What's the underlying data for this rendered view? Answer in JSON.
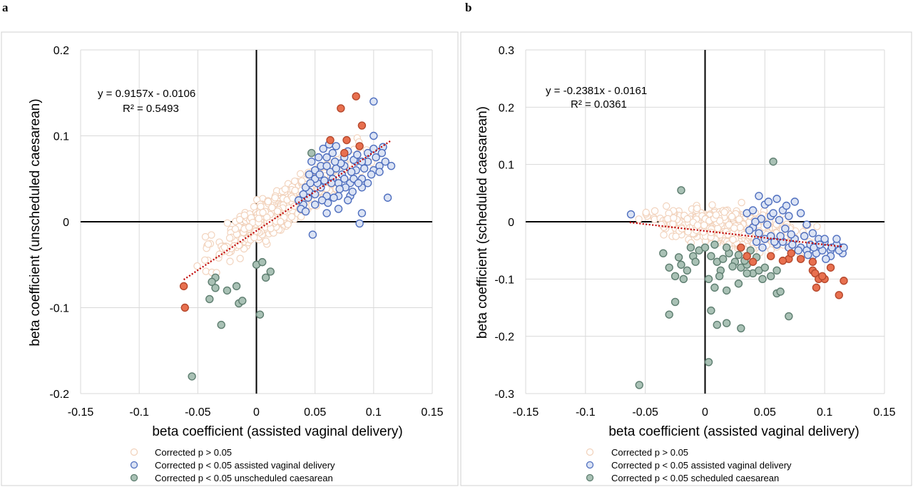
{
  "colors": {
    "ns_fill": "#ffffff",
    "ns_stroke": "#f2d3bd",
    "avd_fill": "#dbe3f4",
    "avd_stroke": "#4f6fbf",
    "cs_fill": "#a9c1b5",
    "cs_stroke": "#5e7e70",
    "both_fill": "#e8704f",
    "both_stroke": "#b5482d",
    "trend": "#c00000",
    "grid": "#d9d9d9",
    "axis": "#000000",
    "frame": "#d0d0d0"
  },
  "chart_data": [
    {
      "panel": "a",
      "type": "scatter",
      "xlabel": "beta coefficient (assisted vaginal delivery)",
      "ylabel": "beta coefficient (unscheduled caesarean)",
      "xlim": [
        -0.15,
        0.15
      ],
      "ylim": [
        -0.2,
        0.2
      ],
      "xticks": [
        "-0.15",
        "-0.1",
        "-0.05",
        "0",
        "0.05",
        "0.1",
        "0.15"
      ],
      "yticks": [
        "0.2",
        "0.1",
        "0",
        "-0.1",
        "-0.2"
      ],
      "grid": true,
      "equation": "y = 0.9157x - 0.0106",
      "r2": "R² = 0.5493",
      "trendline": {
        "slope": 0.9157,
        "intercept": -0.0106,
        "x_range": [
          -0.062,
          0.115
        ]
      },
      "legend": [
        "Corrected p > 0.05",
        "Corrected p < 0.05 assisted vaginal delivery",
        "Corrected p < 0.05 unscheduled caesarean"
      ],
      "background_cloud": {
        "n": 520,
        "slope": 0.9,
        "intercept": -0.005,
        "x_range": [
          -0.065,
          0.11
        ],
        "spread": 0.022
      },
      "series": [
        {
          "category": "avd",
          "points": [
            [
              0.045,
              0.035
            ],
            [
              0.05,
              0.06
            ],
            [
              0.055,
              0.04
            ],
            [
              0.06,
              0.075
            ],
            [
              0.065,
              0.05
            ],
            [
              0.07,
              0.03
            ],
            [
              0.075,
              0.065
            ],
            [
              0.08,
              0.045
            ],
            [
              0.085,
              0.06
            ],
            [
              0.09,
              0.05
            ],
            [
              0.095,
              0.07
            ],
            [
              0.1,
              0.06
            ],
            [
              0.105,
              0.065
            ],
            [
              0.11,
              0.07
            ],
            [
              0.115,
              0.065
            ],
            [
              0.04,
              0.02
            ],
            [
              0.05,
              0.02
            ],
            [
              0.06,
              0.03
            ],
            [
              0.07,
              0.045
            ],
            [
              0.08,
              0.03
            ],
            [
              0.09,
              0.04
            ],
            [
              0.045,
              0.055
            ],
            [
              0.055,
              0.065
            ],
            [
              0.065,
              0.08
            ],
            [
              0.075,
              0.075
            ],
            [
              0.085,
              0.07
            ],
            [
              0.095,
              0.08
            ],
            [
              0.1,
              0.1
            ],
            [
              0.1,
              0.14
            ],
            [
              0.1,
              0.085
            ],
            [
              0.108,
              0.087
            ],
            [
              0.112,
              0.028
            ],
            [
              0.09,
              0.01
            ],
            [
              0.088,
              -0.002
            ],
            [
              0.048,
              -0.015
            ],
            [
              0.06,
              0.01
            ],
            [
              0.07,
              0.015
            ],
            [
              0.078,
              0.025
            ],
            [
              0.083,
              0.05
            ],
            [
              0.058,
              0.048
            ],
            [
              0.063,
              0.058
            ],
            [
              0.068,
              0.062
            ],
            [
              0.073,
              0.055
            ],
            [
              0.052,
              0.045
            ],
            [
              0.042,
              0.04
            ],
            [
              0.098,
              0.055
            ],
            [
              0.092,
              0.062
            ],
            [
              0.087,
              0.045
            ],
            [
              0.082,
              0.035
            ],
            [
              0.076,
              0.04
            ],
            [
              0.071,
              0.038
            ],
            [
              0.066,
              0.028
            ],
            [
              0.061,
              0.022
            ],
            [
              0.056,
              0.025
            ],
            [
              0.05,
              0.032
            ],
            [
              0.044,
              0.028
            ],
            [
              0.038,
              0.015
            ],
            [
              0.105,
              0.058
            ],
            [
              0.095,
              0.045
            ],
            [
              0.083,
              0.072
            ],
            [
              0.078,
              0.082
            ],
            [
              0.072,
              0.068
            ],
            [
              0.067,
              0.07
            ],
            [
              0.06,
              0.065
            ],
            [
              0.053,
              0.075
            ],
            [
              0.047,
              0.07
            ],
            [
              0.057,
              0.085
            ],
            [
              0.062,
              0.09
            ],
            [
              0.068,
              0.088
            ],
            [
              0.05,
              0.05
            ],
            [
              0.09,
              0.07
            ],
            [
              0.086,
              0.078
            ],
            [
              0.081,
              0.058
            ],
            [
              0.075,
              0.05
            ],
            [
              0.064,
              0.045
            ],
            [
              0.054,
              0.055
            ],
            [
              0.046,
              0.045
            ],
            [
              0.04,
              0.032
            ],
            [
              0.036,
              0.025
            ],
            [
              0.042,
              0.012
            ],
            [
              0.102,
              0.075
            ],
            [
              0.107,
              0.08
            ]
          ]
        },
        {
          "category": "cs",
          "points": [
            [
              -0.055,
              -0.18
            ],
            [
              -0.03,
              -0.12
            ],
            [
              -0.035,
              -0.065
            ],
            [
              -0.038,
              -0.07
            ],
            [
              -0.035,
              -0.077
            ],
            [
              -0.04,
              -0.09
            ],
            [
              -0.025,
              -0.08
            ],
            [
              -0.017,
              -0.075
            ],
            [
              -0.015,
              -0.095
            ],
            [
              -0.012,
              -0.092
            ],
            [
              0,
              -0.05
            ],
            [
              0.005,
              -0.047
            ],
            [
              0.008,
              -0.065
            ],
            [
              0.012,
              -0.058
            ],
            [
              0.003,
              -0.108
            ],
            [
              0.047,
              0.08
            ]
          ]
        },
        {
          "category": "both",
          "points": [
            [
              -0.062,
              -0.075
            ],
            [
              -0.061,
              -0.1
            ],
            [
              0.063,
              0.095
            ],
            [
              0.072,
              0.132
            ],
            [
              0.077,
              0.095
            ],
            [
              0.085,
              0.146
            ],
            [
              0.09,
              0.112
            ],
            [
              0.088,
              0.088
            ],
            [
              0.075,
              0.08
            ]
          ]
        }
      ]
    },
    {
      "panel": "b",
      "type": "scatter",
      "xlabel": "beta coefficient (assisted vaginal delivery)",
      "ylabel": "beta coefficient (scheduled caesarean)",
      "xlim": [
        -0.15,
        0.15
      ],
      "ylim": [
        -0.3,
        0.3
      ],
      "xticks": [
        "-0.15",
        "-0.1",
        "-0.05",
        "0",
        "0.05",
        "0.1",
        "0.15"
      ],
      "yticks": [
        "0.3",
        "0.2",
        "0.1",
        "0",
        "-0.1",
        "-0.2",
        "-0.3"
      ],
      "grid": true,
      "equation": "y = -0.2381x - 0.0161",
      "r2": "R² = 0.0361",
      "trendline": {
        "slope": -0.2381,
        "intercept": -0.0161,
        "x_range": [
          -0.063,
          0.115
        ]
      },
      "legend": [
        "Corrected p > 0.05",
        "Corrected p < 0.05 assisted vaginal delivery",
        "Corrected p < 0.05 scheduled caesarean"
      ],
      "background_cloud": {
        "n": 520,
        "slope": -0.24,
        "intercept": -0.005,
        "x_range": [
          -0.065,
          0.11
        ],
        "spread": 0.03
      },
      "series": [
        {
          "category": "avd",
          "points": [
            [
              -0.062,
              0.013
            ],
            [
              0.035,
              0.015
            ],
            [
              0.04,
              0.02
            ],
            [
              0.045,
              0.045
            ],
            [
              0.05,
              0.03
            ],
            [
              0.055,
              0.01
            ],
            [
              0.06,
              0.04
            ],
            [
              0.065,
              0.02
            ],
            [
              0.07,
              0.01
            ],
            [
              0.075,
              0.035
            ],
            [
              0.08,
              0.015
            ],
            [
              0.085,
              -0.005
            ],
            [
              0.09,
              -0.02
            ],
            [
              0.095,
              -0.03
            ],
            [
              0.1,
              -0.035
            ],
            [
              0.105,
              -0.05
            ],
            [
              0.11,
              -0.04
            ],
            [
              0.115,
              -0.055
            ],
            [
              0.04,
              -0.01
            ],
            [
              0.045,
              -0.02
            ],
            [
              0.05,
              -0.03
            ],
            [
              0.055,
              -0.025
            ],
            [
              0.06,
              -0.04
            ],
            [
              0.065,
              -0.035
            ],
            [
              0.07,
              -0.045
            ],
            [
              0.075,
              -0.03
            ],
            [
              0.08,
              -0.045
            ],
            [
              0.085,
              -0.05
            ],
            [
              0.09,
              -0.06
            ],
            [
              0.095,
              -0.045
            ],
            [
              0.1,
              -0.03
            ],
            [
              0.105,
              -0.06
            ],
            [
              0.11,
              -0.03
            ],
            [
              0.115,
              -0.045
            ],
            [
              0.057,
              0.015
            ],
            [
              0.062,
              0.003
            ],
            [
              0.067,
              -0.012
            ],
            [
              0.072,
              -0.022
            ],
            [
              0.052,
              -0.005
            ],
            [
              0.047,
              0.005
            ],
            [
              0.042,
              0.0
            ],
            [
              0.037,
              -0.015
            ],
            [
              0.078,
              -0.05
            ],
            [
              0.083,
              -0.025
            ],
            [
              0.088,
              -0.04
            ],
            [
              0.093,
              -0.055
            ],
            [
              0.098,
              -0.05
            ],
            [
              0.068,
              0.028
            ],
            [
              0.063,
              -0.025
            ],
            [
              0.058,
              -0.035
            ],
            [
              0.053,
              0.035
            ],
            [
              0.048,
              -0.045
            ],
            [
              0.043,
              -0.035
            ],
            [
              0.073,
              -0.04
            ],
            [
              0.086,
              -0.058
            ],
            [
              0.091,
              -0.045
            ],
            [
              0.096,
              -0.04
            ],
            [
              0.101,
              -0.065
            ],
            [
              0.106,
              -0.045
            ],
            [
              0.112,
              -0.05
            ],
            [
              0.116,
              -0.045
            ]
          ]
        },
        {
          "category": "cs",
          "points": [
            [
              -0.055,
              -0.285
            ],
            [
              0.003,
              -0.245
            ],
            [
              -0.03,
              -0.162
            ],
            [
              -0.025,
              -0.14
            ],
            [
              0.005,
              -0.155
            ],
            [
              0.01,
              -0.18
            ],
            [
              0.018,
              -0.177
            ],
            [
              0.03,
              -0.186
            ],
            [
              0.06,
              -0.125
            ],
            [
              0.07,
              -0.165
            ],
            [
              0.057,
              0.105
            ],
            [
              -0.02,
              0.055
            ],
            [
              -0.035,
              -0.055
            ],
            [
              -0.03,
              -0.08
            ],
            [
              -0.02,
              -0.075
            ],
            [
              -0.015,
              -0.085
            ],
            [
              -0.01,
              -0.06
            ],
            [
              -0.005,
              -0.05
            ],
            [
              0.0,
              -0.045
            ],
            [
              0.005,
              -0.06
            ],
            [
              0.01,
              -0.07
            ],
            [
              0.015,
              -0.065
            ],
            [
              0.02,
              -0.055
            ],
            [
              0.025,
              -0.07
            ],
            [
              0.03,
              -0.08
            ],
            [
              0.035,
              -0.075
            ],
            [
              0.04,
              -0.09
            ],
            [
              0.045,
              -0.085
            ],
            [
              0.05,
              -0.08
            ],
            [
              0.055,
              -0.095
            ],
            [
              0.06,
              -0.085
            ],
            [
              0.003,
              -0.1
            ],
            [
              0.008,
              -0.115
            ],
            [
              0.018,
              -0.12
            ],
            [
              0.028,
              -0.108
            ],
            [
              -0.025,
              -0.095
            ],
            [
              -0.018,
              -0.1
            ],
            [
              0.013,
              -0.085
            ],
            [
              0.023,
              -0.078
            ],
            [
              0.033,
              -0.068
            ],
            [
              0.043,
              -0.062
            ],
            [
              0.038,
              -0.05
            ],
            [
              0.028,
              -0.058
            ],
            [
              0.018,
              -0.045
            ],
            [
              0.008,
              -0.04
            ],
            [
              -0.008,
              -0.07
            ],
            [
              -0.012,
              -0.045
            ],
            [
              0.048,
              -0.1
            ],
            [
              0.063,
              -0.122
            ],
            [
              -0.022,
              -0.062
            ],
            [
              0.035,
              -0.09
            ],
            [
              0.012,
              -0.095
            ]
          ]
        },
        {
          "category": "both",
          "points": [
            [
              0.03,
              -0.045
            ],
            [
              0.035,
              -0.06
            ],
            [
              0.055,
              -0.06
            ],
            [
              0.07,
              -0.065
            ],
            [
              0.072,
              -0.055
            ],
            [
              0.09,
              -0.07
            ],
            [
              0.09,
              -0.085
            ],
            [
              0.092,
              -0.09
            ],
            [
              0.095,
              -0.1
            ],
            [
              0.1,
              -0.1
            ],
            [
              0.098,
              -0.095
            ],
            [
              0.105,
              -0.08
            ],
            [
              0.112,
              -0.128
            ],
            [
              0.116,
              -0.103
            ],
            [
              0.093,
              -0.115
            ],
            [
              0.08,
              -0.065
            ],
            [
              0.065,
              -0.068
            ],
            [
              0.04,
              -0.07
            ]
          ]
        }
      ]
    }
  ]
}
